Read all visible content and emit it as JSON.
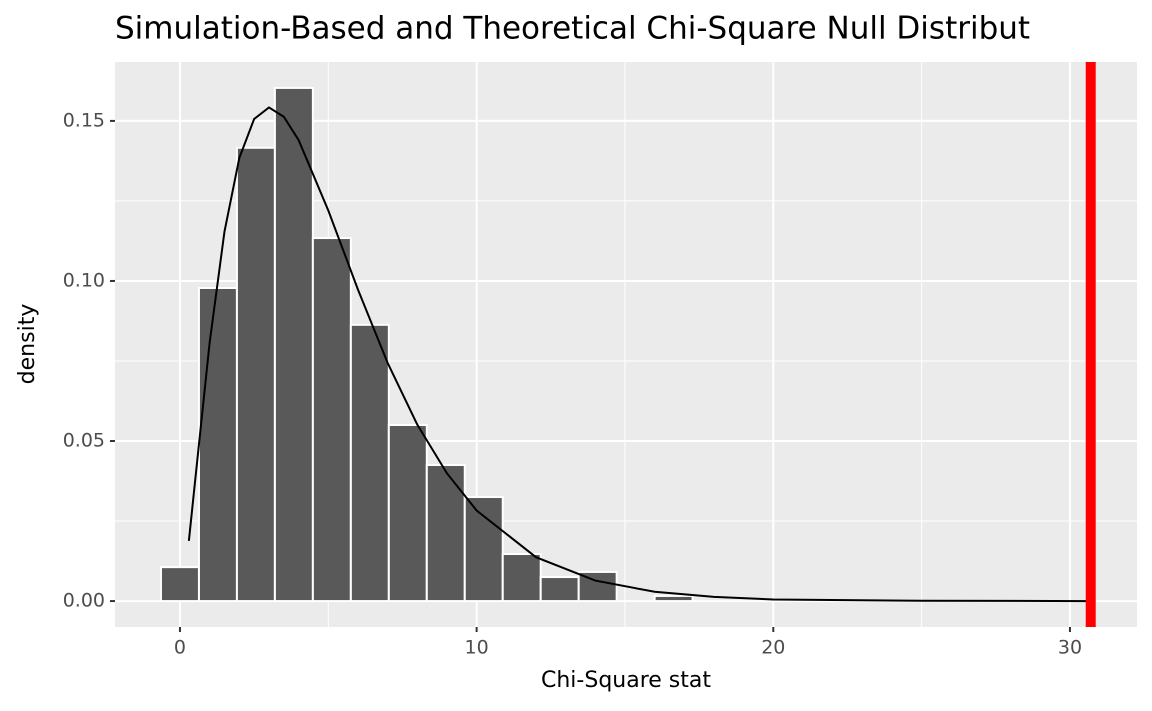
{
  "chart_data": {
    "type": "histogram",
    "title": "Simulation-Based and Theoretical Chi-Square Null Distribut",
    "x_label": "Chi-Square stat",
    "y_label": "density",
    "bins": [
      -0.64,
      0.64,
      1.92,
      3.2,
      4.48,
      5.76,
      7.04,
      8.32,
      9.6,
      10.88,
      12.16,
      13.44,
      14.72,
      16,
      17.28
    ],
    "values": [
      0.0106,
      0.0978,
      0.1416,
      0.1603,
      0.1134,
      0.0863,
      0.055,
      0.0425,
      0.0325,
      0.0147,
      0.0075,
      0.0091,
      0,
      0.0016
    ],
    "color": "#595959",
    "curve": {
      "color": "#000000",
      "x": [
        0.3,
        0.5,
        1,
        1.5,
        2,
        2.5,
        3,
        3.5,
        4,
        5,
        6,
        7,
        8,
        9,
        10,
        12,
        14,
        16,
        18,
        20,
        25,
        30.7
      ],
      "values": [
        0.0188,
        0.0366,
        0.0807,
        0.1154,
        0.1384,
        0.1506,
        0.1542,
        0.1513,
        0.144,
        0.122,
        0.0973,
        0.0744,
        0.0551,
        0.0399,
        0.0283,
        0.0137,
        0.0064,
        0.0029,
        0.0013,
        0.0005,
        0.0001,
        0
      ]
    },
    "vline": {
      "x": 30.7,
      "color": "#ff0000"
    },
    "xlim": [
      -2.19,
      32.26
    ],
    "ylim": [
      -0.0081,
      0.1684
    ],
    "xticks": [
      0,
      10,
      20,
      30
    ],
    "yticks": [
      {
        "value": 0,
        "label": "0.00"
      },
      {
        "value": 0.05,
        "label": "0.05"
      },
      {
        "value": 0.1,
        "label": "0.10"
      },
      {
        "value": 0.15,
        "label": "0.15"
      }
    ],
    "grid": true
  }
}
